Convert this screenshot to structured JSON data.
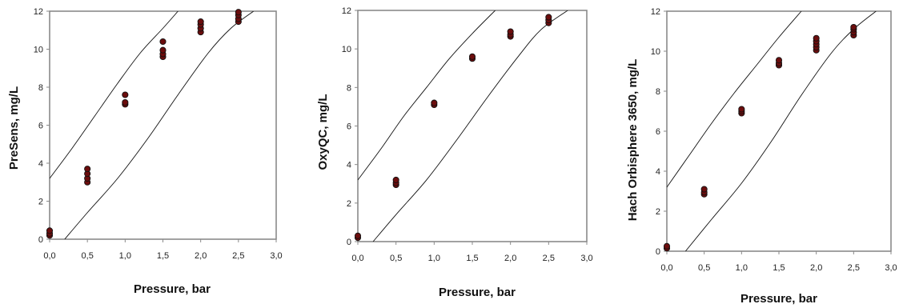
{
  "chart_data": [
    {
      "type": "scatter",
      "xlabel": "Pressure, bar",
      "ylabel": "PreSens, mg/L",
      "xlim": [
        0,
        3
      ],
      "ylim": [
        0,
        12
      ],
      "x_ticks": [
        "0,0",
        "0,5",
        "1,0",
        "1,5",
        "2,0",
        "2,5",
        "3,0"
      ],
      "y_ticks": [
        "0",
        "2",
        "4",
        "6",
        "8",
        "10",
        "12"
      ],
      "grid": false,
      "series": [
        {
          "values": [
            {
              "x": 0,
              "y": 0.2
            },
            {
              "x": 0,
              "y": 0.3
            },
            {
              "x": 0,
              "y": 0.45
            },
            {
              "x": 0.5,
              "y": 3.0
            },
            {
              "x": 0.5,
              "y": 3.2
            },
            {
              "x": 0.5,
              "y": 3.45
            },
            {
              "x": 0.5,
              "y": 3.7
            },
            {
              "x": 1.0,
              "y": 7.1
            },
            {
              "x": 1.0,
              "y": 7.2
            },
            {
              "x": 1.0,
              "y": 7.6
            },
            {
              "x": 1.5,
              "y": 9.6
            },
            {
              "x": 1.5,
              "y": 9.75
            },
            {
              "x": 1.5,
              "y": 9.95
            },
            {
              "x": 1.5,
              "y": 10.4
            },
            {
              "x": 2.0,
              "y": 10.9
            },
            {
              "x": 2.0,
              "y": 11.1
            },
            {
              "x": 2.0,
              "y": 11.3
            },
            {
              "x": 2.0,
              "y": 11.45
            },
            {
              "x": 2.5,
              "y": 11.45
            },
            {
              "x": 2.5,
              "y": 11.6
            },
            {
              "x": 2.5,
              "y": 11.8
            },
            {
              "x": 2.5,
              "y": 11.95
            }
          ]
        }
      ],
      "bound_lines": [
        [
          [
            0,
            3.2
          ],
          [
            0.3,
            4.8
          ],
          [
            0.6,
            6.5
          ],
          [
            0.9,
            8.2
          ],
          [
            1.2,
            9.8
          ],
          [
            1.5,
            11.1
          ],
          [
            1.7,
            12.0
          ]
        ],
        [
          [
            0.2,
            0
          ],
          [
            0.5,
            1.4
          ],
          [
            0.9,
            3.2
          ],
          [
            1.3,
            5.3
          ],
          [
            1.7,
            7.6
          ],
          [
            2.1,
            9.8
          ],
          [
            2.4,
            11.1
          ],
          [
            2.7,
            12.0
          ]
        ]
      ]
    },
    {
      "type": "scatter",
      "xlabel": "Pressure, bar",
      "ylabel": "OxyQC, mg/L",
      "xlim": [
        0,
        3
      ],
      "ylim": [
        0,
        12
      ],
      "x_ticks": [
        "0,0",
        "0,5",
        "1,0",
        "1,5",
        "2,0",
        "2,5",
        "3,0"
      ],
      "y_ticks": [
        "0",
        "2",
        "4",
        "6",
        "8",
        "10",
        "12"
      ],
      "grid": false,
      "series": [
        {
          "values": [
            {
              "x": 0,
              "y": 0.2
            },
            {
              "x": 0,
              "y": 0.3
            },
            {
              "x": 0.5,
              "y": 2.95
            },
            {
              "x": 0.5,
              "y": 3.05
            },
            {
              "x": 0.5,
              "y": 3.2
            },
            {
              "x": 1.0,
              "y": 7.1
            },
            {
              "x": 1.0,
              "y": 7.2
            },
            {
              "x": 1.5,
              "y": 9.5
            },
            {
              "x": 1.5,
              "y": 9.6
            },
            {
              "x": 2.0,
              "y": 10.65
            },
            {
              "x": 2.0,
              "y": 10.75
            },
            {
              "x": 2.0,
              "y": 10.9
            },
            {
              "x": 2.5,
              "y": 11.35
            },
            {
              "x": 2.5,
              "y": 11.5
            },
            {
              "x": 2.5,
              "y": 11.65
            }
          ]
        }
      ],
      "bound_lines": [
        [
          [
            0,
            3.2
          ],
          [
            0.3,
            4.8
          ],
          [
            0.6,
            6.5
          ],
          [
            0.9,
            8.0
          ],
          [
            1.2,
            9.5
          ],
          [
            1.5,
            10.8
          ],
          [
            1.8,
            12.0
          ]
        ],
        [
          [
            0.2,
            0
          ],
          [
            0.5,
            1.4
          ],
          [
            0.9,
            3.2
          ],
          [
            1.3,
            5.3
          ],
          [
            1.7,
            7.5
          ],
          [
            2.1,
            9.6
          ],
          [
            2.4,
            11.0
          ],
          [
            2.75,
            12.0
          ]
        ]
      ]
    },
    {
      "type": "scatter",
      "xlabel": "Pressure, bar",
      "ylabel": "Hach Orbisphere 3650, mg/L",
      "xlim": [
        0,
        3
      ],
      "ylim": [
        0,
        12
      ],
      "x_ticks": [
        "0,0",
        "0,5",
        "1,0",
        "1,5",
        "2,0",
        "2,5",
        "3,0"
      ],
      "y_ticks": [
        "0",
        "2",
        "4",
        "6",
        "8",
        "10",
        "12"
      ],
      "grid": false,
      "series": [
        {
          "values": [
            {
              "x": 0,
              "y": 0.15
            },
            {
              "x": 0,
              "y": 0.25
            },
            {
              "x": 0.5,
              "y": 2.85
            },
            {
              "x": 0.5,
              "y": 2.95
            },
            {
              "x": 0.5,
              "y": 3.1
            },
            {
              "x": 1.0,
              "y": 6.9
            },
            {
              "x": 1.0,
              "y": 7.0
            },
            {
              "x": 1.0,
              "y": 7.1
            },
            {
              "x": 1.5,
              "y": 9.3
            },
            {
              "x": 1.5,
              "y": 9.4
            },
            {
              "x": 1.5,
              "y": 9.55
            },
            {
              "x": 2.0,
              "y": 10.05
            },
            {
              "x": 2.0,
              "y": 10.2
            },
            {
              "x": 2.0,
              "y": 10.35
            },
            {
              "x": 2.0,
              "y": 10.5
            },
            {
              "x": 2.0,
              "y": 10.65
            },
            {
              "x": 2.5,
              "y": 10.8
            },
            {
              "x": 2.5,
              "y": 10.95
            },
            {
              "x": 2.5,
              "y": 11.1
            },
            {
              "x": 2.5,
              "y": 11.2
            }
          ]
        }
      ],
      "bound_lines": [
        [
          [
            0,
            3.2
          ],
          [
            0.3,
            4.8
          ],
          [
            0.6,
            6.4
          ],
          [
            0.9,
            7.9
          ],
          [
            1.2,
            9.3
          ],
          [
            1.5,
            10.7
          ],
          [
            1.8,
            12.0
          ]
        ],
        [
          [
            0.25,
            0
          ],
          [
            0.6,
            1.6
          ],
          [
            1.0,
            3.4
          ],
          [
            1.4,
            5.5
          ],
          [
            1.8,
            7.8
          ],
          [
            2.2,
            9.9
          ],
          [
            2.5,
            11.1
          ],
          [
            2.8,
            12.0
          ]
        ]
      ]
    }
  ]
}
